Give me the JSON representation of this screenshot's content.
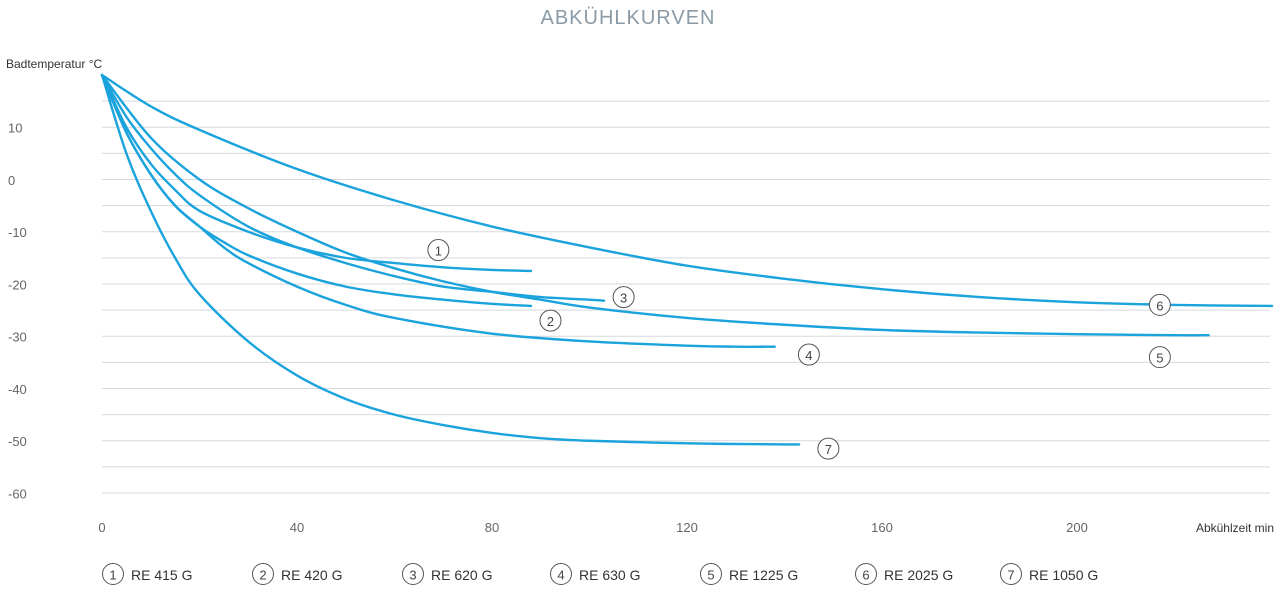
{
  "chart_data": {
    "type": "line",
    "title": "ABKÜHLKURVEN",
    "ylabel": "Badtemperatur °C",
    "xlabel": "Abkühlzeit min",
    "xlim": [
      0,
      240
    ],
    "ylim": [
      -60,
      20
    ],
    "xticks": [
      0,
      40,
      80,
      120,
      160,
      200
    ],
    "yticks": [
      10,
      0,
      -10,
      -20,
      -30,
      -40,
      -50,
      -60
    ],
    "grid": true,
    "accent_color": "#1aa3dc",
    "series": [
      {
        "id": "1",
        "name": "RE 415 G",
        "x": [
          0,
          5,
          10,
          15,
          20,
          30,
          40,
          50,
          60,
          70,
          80,
          88
        ],
        "y": [
          20,
          10,
          3,
          -2,
          -6,
          -10,
          -13,
          -15,
          -16,
          -16.8,
          -17.3,
          -17.5
        ]
      },
      {
        "id": "2",
        "name": "RE 420 G",
        "x": [
          0,
          5,
          10,
          15,
          20,
          25,
          30,
          40,
          50,
          60,
          70,
          80,
          88
        ],
        "y": [
          20,
          9,
          1,
          -5,
          -9,
          -12,
          -14.5,
          -18,
          -20.5,
          -22,
          -23,
          -23.8,
          -24.2
        ]
      },
      {
        "id": "3",
        "name": "RE 620 G",
        "x": [
          0,
          5,
          10,
          15,
          20,
          30,
          40,
          50,
          60,
          70,
          80,
          90,
          100,
          103
        ],
        "y": [
          20,
          12,
          6,
          1,
          -3,
          -9,
          -13,
          -16,
          -18.5,
          -20.5,
          -21.5,
          -22.5,
          -23,
          -23.2
        ]
      },
      {
        "id": "4",
        "name": "RE 630 G",
        "x": [
          0,
          5,
          10,
          15,
          20,
          25,
          30,
          40,
          50,
          60,
          80,
          100,
          120,
          130,
          138
        ],
        "y": [
          20,
          9,
          1,
          -5,
          -9,
          -13,
          -16,
          -20.5,
          -24,
          -26.5,
          -29.5,
          -31,
          -31.8,
          -32,
          -32
        ]
      },
      {
        "id": "5",
        "name": "RE 1225 G",
        "x": [
          0,
          10,
          20,
          30,
          40,
          50,
          60,
          70,
          80,
          90,
          100,
          120,
          140,
          160,
          180,
          200,
          220,
          227
        ],
        "y": [
          20,
          8,
          0,
          -5.5,
          -10,
          -14,
          -17,
          -19.5,
          -21.5,
          -23,
          -24.5,
          -26.5,
          -27.8,
          -28.8,
          -29.3,
          -29.6,
          -29.8,
          -29.8
        ]
      },
      {
        "id": "6",
        "name": "RE 2025 G",
        "x": [
          0,
          10,
          20,
          40,
          60,
          80,
          100,
          120,
          140,
          160,
          180,
          200,
          220,
          240
        ],
        "y": [
          20,
          14,
          9.5,
          2,
          -4,
          -9,
          -13,
          -16.5,
          -19,
          -21,
          -22.5,
          -23.5,
          -24,
          -24.2
        ]
      },
      {
        "id": "7",
        "name": "RE 1050 G",
        "x": [
          0,
          5,
          10,
          15,
          20,
          30,
          40,
          50,
          60,
          70,
          80,
          90,
          100,
          120,
          140,
          143
        ],
        "y": [
          20,
          5,
          -6,
          -15,
          -22,
          -31,
          -37.5,
          -42,
          -45,
          -47,
          -48.5,
          -49.5,
          -50,
          -50.5,
          -50.7,
          -50.7
        ]
      }
    ],
    "markers": [
      {
        "label": "1",
        "x": 69,
        "y": -13.5
      },
      {
        "label": "2",
        "x": 92,
        "y": -27
      },
      {
        "label": "3",
        "x": 107,
        "y": -22.5
      },
      {
        "label": "4",
        "x": 145,
        "y": -33.5
      },
      {
        "label": "5",
        "x": 217,
        "y": -34
      },
      {
        "label": "6",
        "x": 217,
        "y": -24
      },
      {
        "label": "7",
        "x": 149,
        "y": -51.5
      }
    ]
  }
}
